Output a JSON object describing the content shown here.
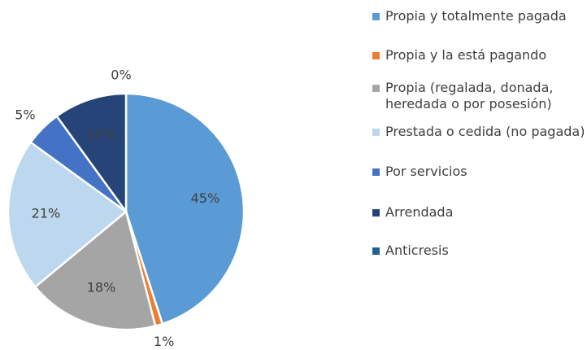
{
  "chart_data": {
    "type": "pie",
    "categories": [
      "Propia y totalmente pagada",
      "Propia y la está pagando",
      "Propia (regalada, donada, heredada o por posesión)",
      "Prestada o cedida (no pagada)",
      "Por servicios",
      "Arrendada",
      "Anticresis"
    ],
    "values": [
      45,
      1,
      18,
      21,
      5,
      10,
      0
    ],
    "value_labels": [
      "45%",
      "1%",
      "18%",
      "21%",
      "5%",
      "10%",
      "0%"
    ],
    "colors": [
      "#5b9bd5",
      "#ed7d31",
      "#a5a5a5",
      "#bdd7ee",
      "#4472c4",
      "#264478",
      "#255e91"
    ],
    "legend": "right"
  }
}
